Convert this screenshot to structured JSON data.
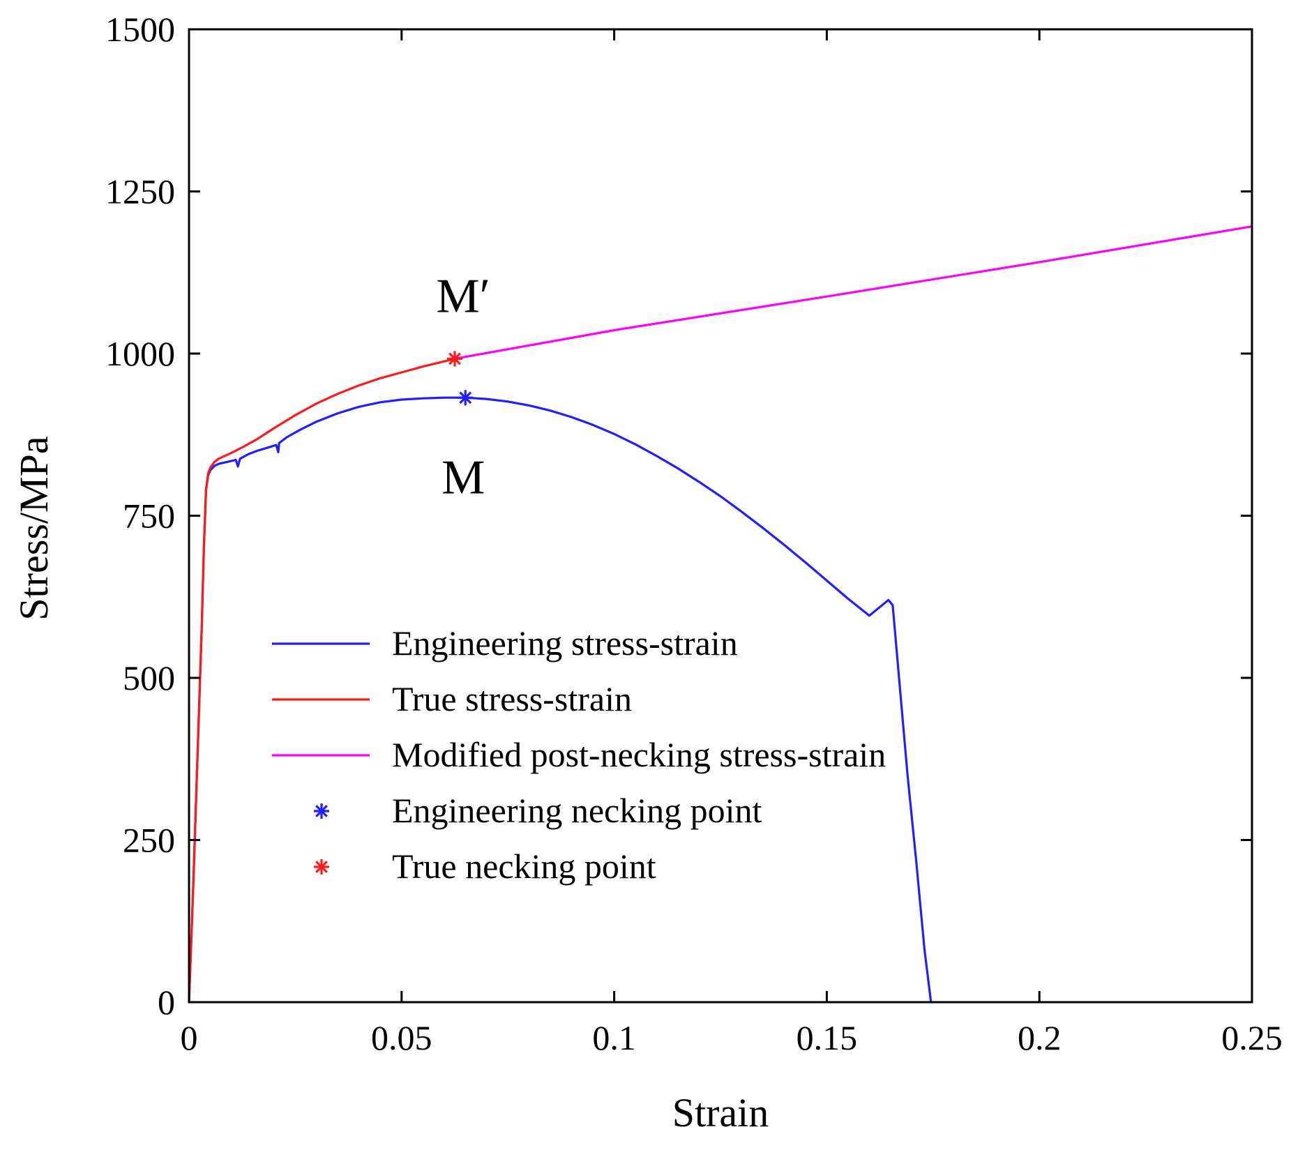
{
  "chart_data": {
    "type": "line",
    "title": "",
    "xlabel": "Strain",
    "ylabel": "Stress/MPa",
    "xlim": [
      0,
      0.25
    ],
    "ylim": [
      0,
      1500
    ],
    "xticks": [
      0,
      0.05,
      0.1,
      0.15,
      0.2,
      0.25
    ],
    "xtick_labels": [
      "0",
      "0.05",
      "0.1",
      "0.15",
      "0.2",
      "0.25"
    ],
    "yticks": [
      0,
      250,
      500,
      750,
      1000,
      1250,
      1500
    ],
    "ytick_labels": [
      "0",
      "250",
      "500",
      "750",
      "1000",
      "1250",
      "1500"
    ],
    "grid": false,
    "legend_position": "center-left",
    "series": [
      {
        "name": "Engineering stress-strain",
        "color": "#1f1fff",
        "points": [
          [
            0,
            0
          ],
          [
            0.001,
            180
          ],
          [
            0.002,
            380
          ],
          [
            0.003,
            580
          ],
          [
            0.0035,
            700
          ],
          [
            0.004,
            790
          ],
          [
            0.0045,
            812
          ],
          [
            0.005,
            820
          ],
          [
            0.006,
            827
          ],
          [
            0.007,
            830
          ],
          [
            0.009,
            833
          ],
          [
            0.011,
            836
          ],
          [
            0.0115,
            826
          ],
          [
            0.012,
            838
          ],
          [
            0.014,
            845
          ],
          [
            0.016,
            850
          ],
          [
            0.018,
            854
          ],
          [
            0.0205,
            859
          ],
          [
            0.021,
            848
          ],
          [
            0.0212,
            862
          ],
          [
            0.023,
            871
          ],
          [
            0.026,
            882
          ],
          [
            0.03,
            895
          ],
          [
            0.035,
            908
          ],
          [
            0.04,
            918
          ],
          [
            0.045,
            925
          ],
          [
            0.05,
            929
          ],
          [
            0.055,
            931
          ],
          [
            0.06,
            932
          ],
          [
            0.065,
            932
          ],
          [
            0.07,
            930
          ],
          [
            0.075,
            926
          ],
          [
            0.08,
            920
          ],
          [
            0.085,
            912
          ],
          [
            0.09,
            902
          ],
          [
            0.095,
            890
          ],
          [
            0.1,
            876
          ],
          [
            0.105,
            860
          ],
          [
            0.11,
            842
          ],
          [
            0.115,
            823
          ],
          [
            0.12,
            802
          ],
          [
            0.125,
            780
          ],
          [
            0.13,
            756
          ],
          [
            0.135,
            731
          ],
          [
            0.14,
            705
          ],
          [
            0.145,
            678
          ],
          [
            0.15,
            650
          ],
          [
            0.155,
            622
          ],
          [
            0.16,
            596
          ],
          [
            0.1645,
            620
          ],
          [
            0.1655,
            612
          ],
          [
            0.167,
            500
          ],
          [
            0.169,
            350
          ],
          [
            0.171,
            220
          ],
          [
            0.173,
            80
          ],
          [
            0.1745,
            0
          ]
        ]
      },
      {
        "name": "True stress-strain",
        "color": "#ff1a1a",
        "points": [
          [
            0,
            0
          ],
          [
            0.001,
            180
          ],
          [
            0.002,
            380
          ],
          [
            0.003,
            580
          ],
          [
            0.0035,
            700
          ],
          [
            0.004,
            790
          ],
          [
            0.0045,
            815
          ],
          [
            0.005,
            824
          ],
          [
            0.006,
            833
          ],
          [
            0.007,
            838
          ],
          [
            0.01,
            847
          ],
          [
            0.013,
            857
          ],
          [
            0.016,
            868
          ],
          [
            0.02,
            885
          ],
          [
            0.025,
            905
          ],
          [
            0.03,
            923
          ],
          [
            0.035,
            938
          ],
          [
            0.04,
            951
          ],
          [
            0.045,
            962
          ],
          [
            0.05,
            971
          ],
          [
            0.055,
            980
          ],
          [
            0.06,
            988
          ],
          [
            0.0625,
            992
          ]
        ]
      },
      {
        "name": "Modified post-necking stress-strain",
        "color": "#ff00ff",
        "points": [
          [
            0.0625,
            992
          ],
          [
            0.1,
            1036
          ],
          [
            0.15,
            1088
          ],
          [
            0.2,
            1141
          ],
          [
            0.25,
            1196
          ]
        ]
      }
    ],
    "markers": [
      {
        "name": "Engineering necking point",
        "symbol": "asterisk",
        "color": "#1f1fff",
        "x": 0.065,
        "y": 932
      },
      {
        "name": "True necking point",
        "symbol": "asterisk",
        "color": "#ff1a1a",
        "x": 0.0625,
        "y": 992
      }
    ],
    "annotations": [
      {
        "text": "M′",
        "x": 0.0645,
        "y": 1090
      },
      {
        "text": "M",
        "x": 0.0645,
        "y": 810
      }
    ],
    "legend": [
      {
        "label": "Engineering stress-strain",
        "kind": "line",
        "color": "#1f1fff"
      },
      {
        "label": "True stress-strain",
        "kind": "line",
        "color": "#ff1a1a"
      },
      {
        "label": "Modified post-necking stress-strain",
        "kind": "line",
        "color": "#ff00ff"
      },
      {
        "label": "Engineering necking point",
        "kind": "marker",
        "color": "#1f1fff"
      },
      {
        "label": "True necking point",
        "kind": "marker",
        "color": "#ff1a1a"
      }
    ]
  }
}
